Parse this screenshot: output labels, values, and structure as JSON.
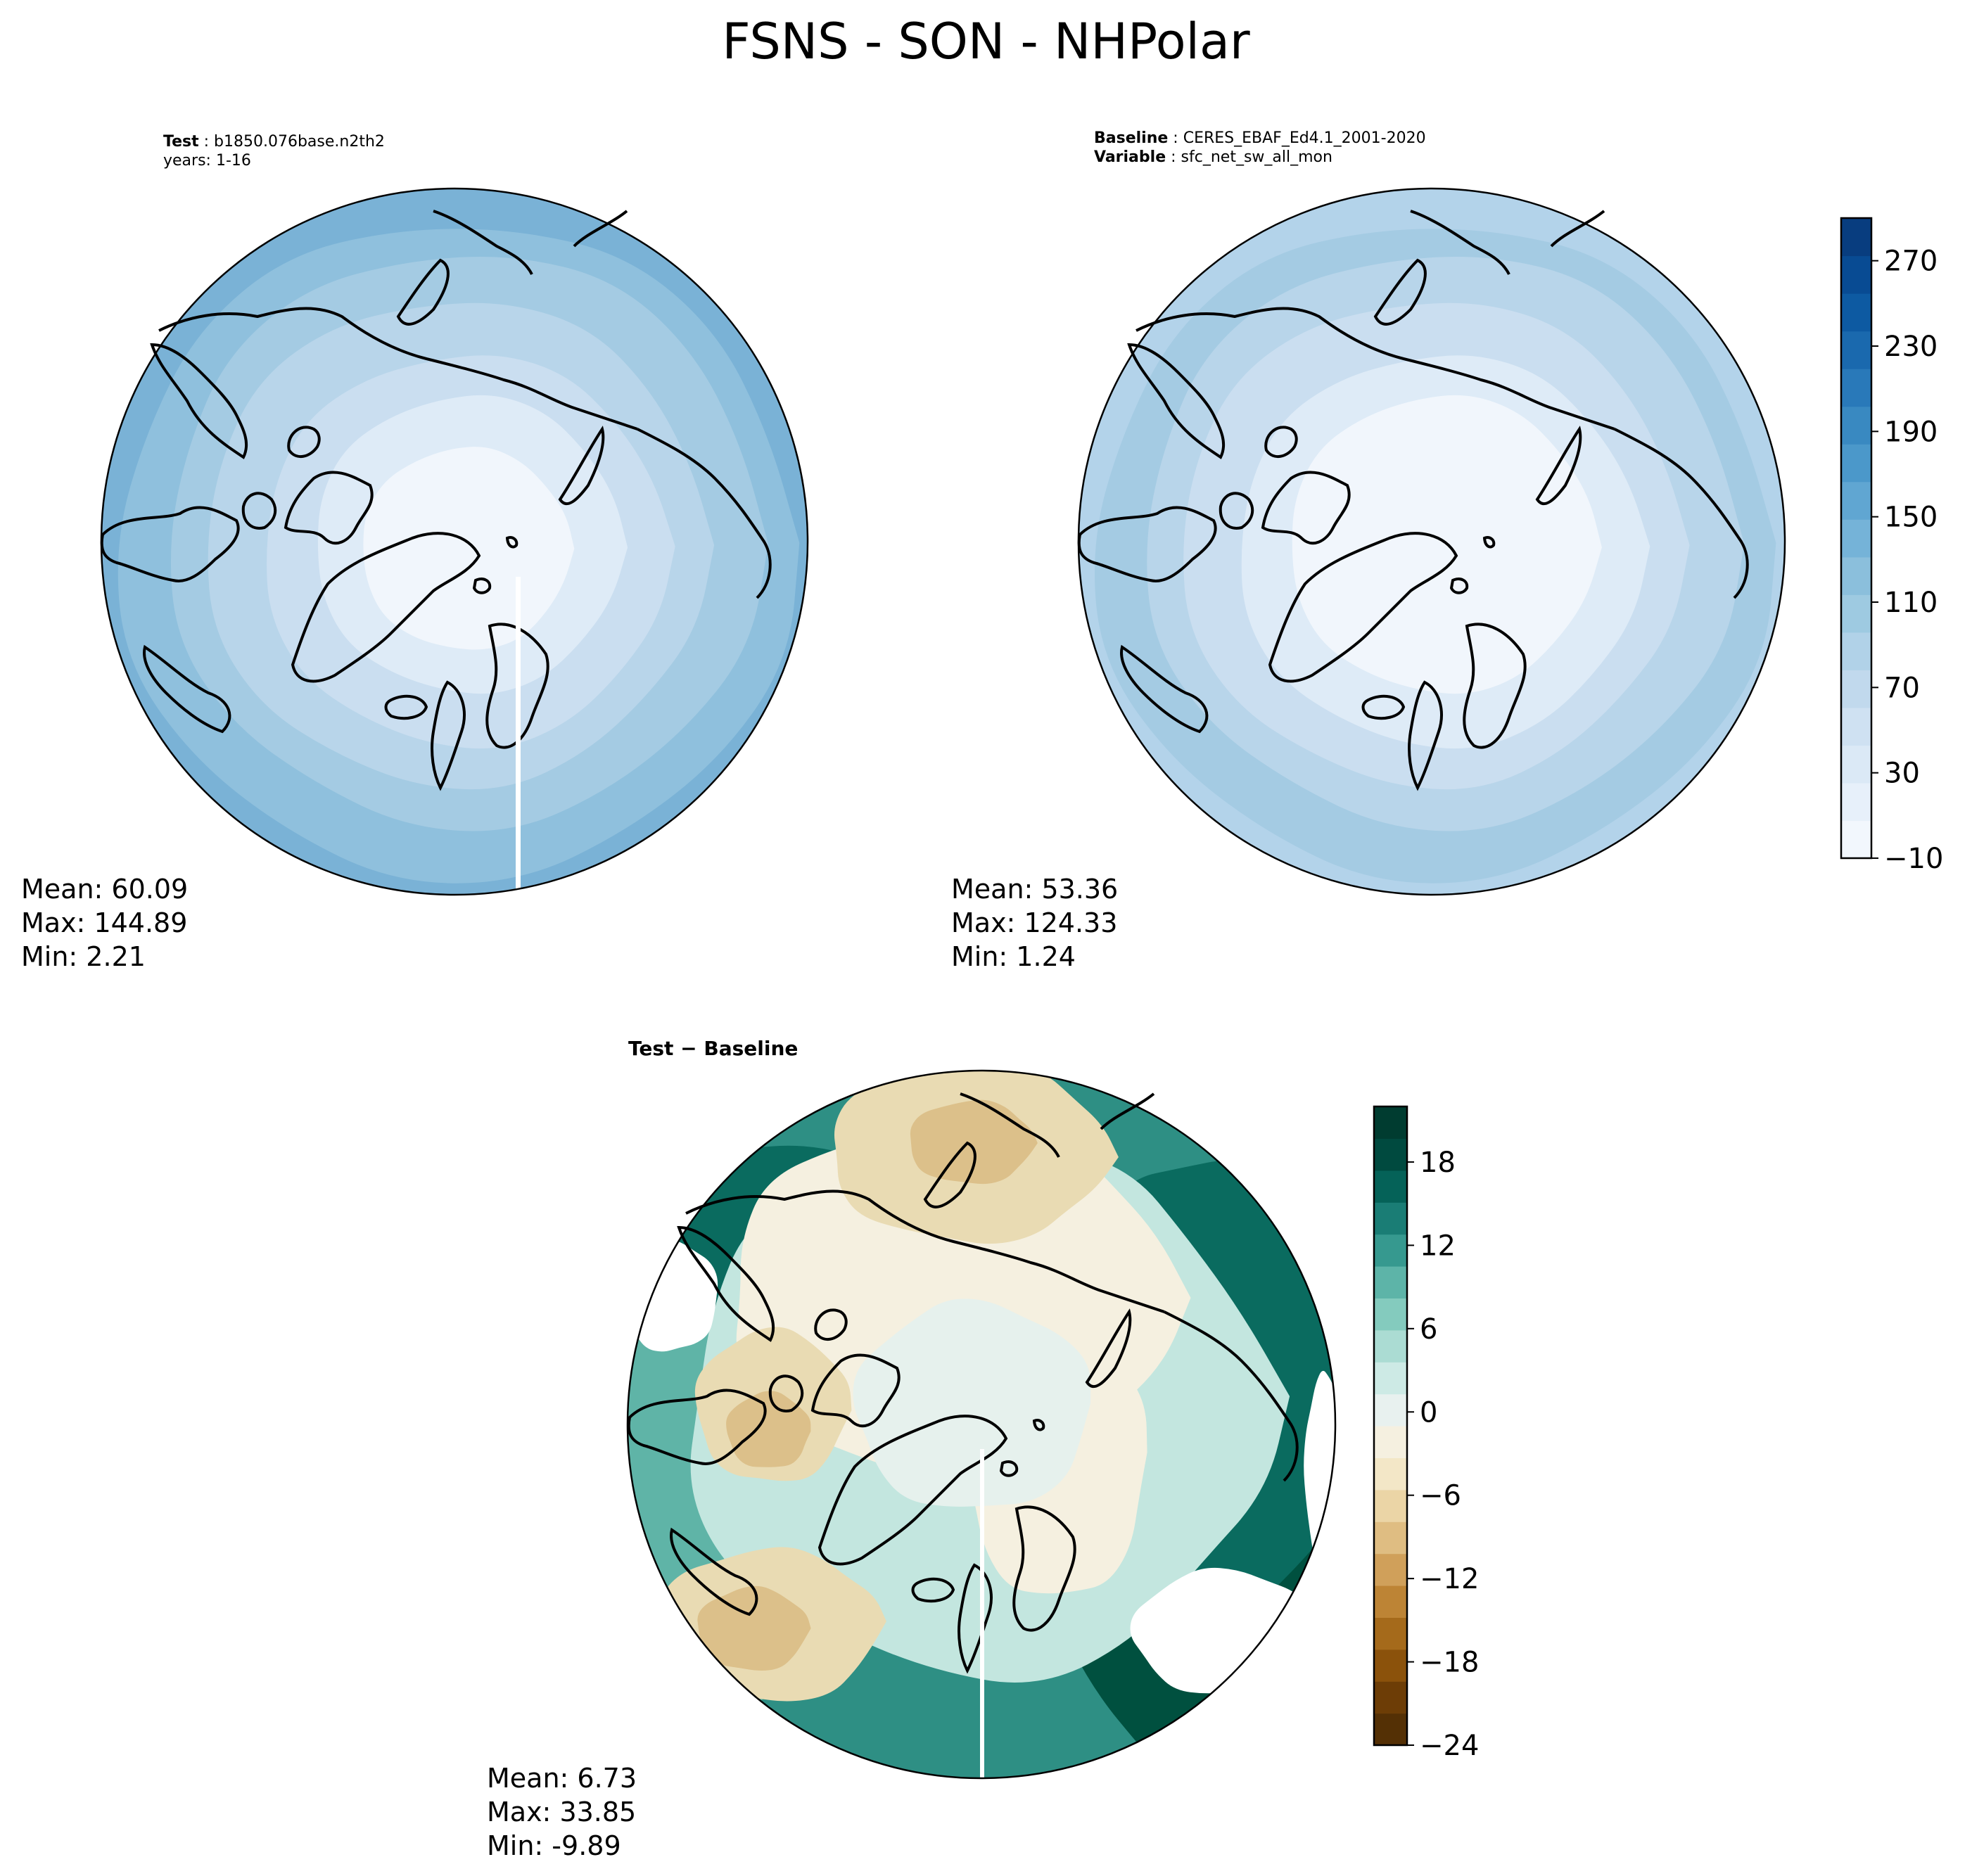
{
  "title": "FSNS - SON - NHPolar",
  "panels": {
    "test": {
      "label_key": "Test",
      "label_value": "b1850.076base.n2th2",
      "years": "years: 1-16",
      "stats": [
        "Mean: 60.09",
        "Max: 144.89",
        "Min:  2.21"
      ]
    },
    "baseline": {
      "label_key": "Baseline",
      "label_value": "CERES_EBAF_Ed4.1_2001-2020",
      "variable_key": "Variable",
      "variable_value": "sfc_net_sw_all_mon",
      "stats": [
        "Mean: 53.36",
        "Max: 124.33",
        "Min:  1.24"
      ]
    },
    "diff": {
      "title": "Test − Baseline",
      "stats": [
        "Mean:  6.73",
        "Max: 33.85",
        "Min: -9.89"
      ]
    }
  },
  "colorbar_main": {
    "colormap": "Blues",
    "range": [
      -10,
      290
    ],
    "ticks": [
      "−10",
      "30",
      "70",
      "110",
      "150",
      "190",
      "230",
      "270"
    ],
    "colors": [
      "#f2f7fd",
      "#e7f0fa",
      "#dbe9f6",
      "#cfe1f2",
      "#c1d9ed",
      "#b1d2e8",
      "#9ecae1",
      "#8bbfdc",
      "#75b3d8",
      "#60a6d2",
      "#4b98ca",
      "#3989c1",
      "#2979b9",
      "#1a69ae",
      "#0d5aa2",
      "#084b93",
      "#083d7f"
    ]
  },
  "colorbar_diff": {
    "colormap": "BrBG",
    "range": [
      -24,
      22
    ],
    "ticks": [
      "−24",
      "−18",
      "−12",
      "−6",
      "0",
      "6",
      "12",
      "18"
    ],
    "colors": [
      "#543005",
      "#6d3d06",
      "#8b520b",
      "#a56a1b",
      "#bd8435",
      "#d0a05a",
      "#dfbd82",
      "#ebd5a6",
      "#f3e7c7",
      "#f5f0e0",
      "#e8f1ef",
      "#cdeae5",
      "#abdcd3",
      "#84cbbe",
      "#5db4a8",
      "#36998f",
      "#1a7d75",
      "#056258",
      "#004a3f",
      "#003c30"
    ]
  },
  "map_palette": {
    "main": [
      "#f1f6fc",
      "#deebf7",
      "#cadef0",
      "#b8d5ea",
      "#a4cbe3",
      "#8fc0dd",
      "#7ab2d6"
    ],
    "diff": [
      "#f5f0e0",
      "#e9dbb3",
      "#dcc08a",
      "#c79c5c",
      "#e6f1ed",
      "#c3e6df",
      "#93d0c4",
      "#5fb4a7",
      "#2e8f84",
      "#0a6b5f",
      "#00503f"
    ]
  }
}
